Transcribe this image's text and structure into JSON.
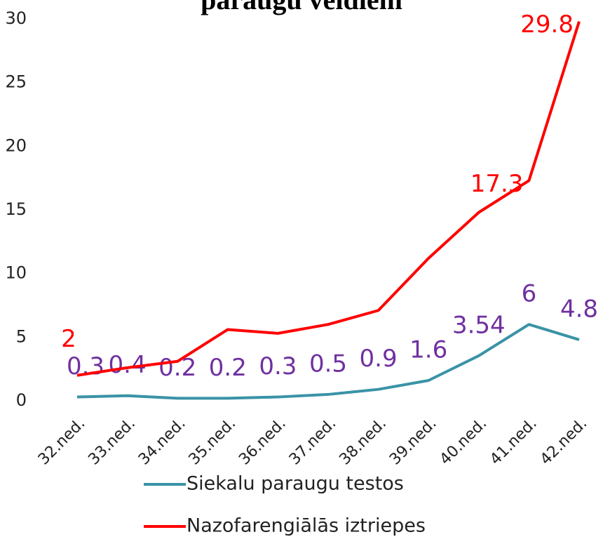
{
  "chart_data": {
    "type": "line",
    "title": "paraugu veidiem",
    "categories": [
      "32.ned.",
      "33.ned.",
      "34.ned.",
      "35.ned.",
      "36.ned.",
      "37.ned.",
      "38.ned.",
      "39.ned.",
      "40.ned.",
      "41.ned.",
      "42.ned."
    ],
    "series": [
      {
        "name": "Siekalu paraugu testos",
        "color": "#3a93a6",
        "label_color": "#7030a0",
        "values": [
          0.3,
          0.4,
          0.2,
          0.2,
          0.3,
          0.5,
          0.9,
          1.6,
          3.54,
          6,
          4.8
        ]
      },
      {
        "name": "Nazofarengiālās iztriepes",
        "color": "#ff0000",
        "label_color": "#ff0000",
        "values": [
          2,
          2.6,
          3.1,
          5.6,
          5.3,
          6.0,
          7.1,
          11.2,
          14.8,
          17.3,
          29.8
        ],
        "value_labels": [
          "2",
          null,
          null,
          null,
          null,
          null,
          null,
          null,
          null,
          "17.3",
          "29.8"
        ]
      }
    ],
    "ylim": [
      0,
      30
    ],
    "yticks": [
      0,
      5,
      10,
      15,
      20,
      25,
      30
    ],
    "grid": false
  }
}
